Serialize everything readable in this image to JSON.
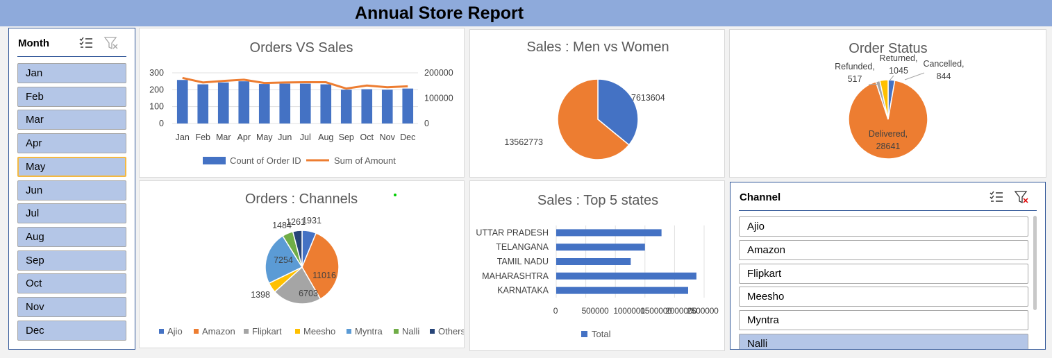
{
  "report_title": "Annual Store Report",
  "month_slicer": {
    "title": "Month",
    "items": [
      "Jan",
      "Feb",
      "Mar",
      "Apr",
      "May",
      "Jun",
      "Jul",
      "Aug",
      "Sep",
      "Oct",
      "Nov",
      "Dec"
    ],
    "selected": "May"
  },
  "channel_slicer": {
    "title": "Channel",
    "items": [
      "Ajio",
      "Amazon",
      "Flipkart",
      "Meesho",
      "Myntra",
      "Nalli"
    ]
  },
  "colors": {
    "blue": "#4472c4",
    "orange": "#ed7d31",
    "gray": "#a5a5a5",
    "yellow": "#ffc000",
    "lightblue": "#5b9bd5",
    "green": "#70ad47",
    "navy": "#264478"
  },
  "chart_data": [
    {
      "id": "orders_vs_sales",
      "type": "bar",
      "title": "Orders VS Sales",
      "categories": [
        "Jan",
        "Feb",
        "Mar",
        "Apr",
        "May",
        "Jun",
        "Jul",
        "Aug",
        "Sep",
        "Oct",
        "Nov",
        "Dec"
      ],
      "series": [
        {
          "name": "Count of Order ID",
          "type": "bar",
          "axis": "left",
          "values": [
            258,
            232,
            243,
            250,
            234,
            236,
            236,
            232,
            200,
            203,
            200,
            207
          ]
        },
        {
          "name": "Sum of Amount",
          "type": "line",
          "axis": "right",
          "values": [
            180000,
            162000,
            168000,
            173000,
            160000,
            162000,
            163000,
            163000,
            138000,
            150000,
            143000,
            147000
          ]
        }
      ],
      "ylim_left": [
        0,
        300
      ],
      "ylim_right": [
        0,
        200000
      ],
      "yticks_left": [
        "0",
        "100",
        "200",
        "300"
      ],
      "yticks_right": [
        "0",
        "100000",
        "200000"
      ],
      "legend_position": "bottom"
    },
    {
      "id": "men_vs_women",
      "type": "pie",
      "title": "Sales : Men vs Women",
      "slices": [
        {
          "value": 7613604,
          "label": "7613604",
          "color": "#4472c4"
        },
        {
          "value": 13562773,
          "label": "13562773",
          "color": "#ed7d31"
        }
      ]
    },
    {
      "id": "order_status",
      "type": "pie",
      "title": "Order Status",
      "slices": [
        {
          "name": "Cancelled",
          "value": 844,
          "label_line1": "Cancelled,",
          "label_line2": "844",
          "color": "#4472c4"
        },
        {
          "name": "Delivered",
          "value": 28641,
          "label_line1": "Delivered,",
          "label_line2": "28641",
          "color": "#ed7d31"
        },
        {
          "name": "Refunded",
          "value": 517,
          "label_line1": "Refunded,",
          "label_line2": "517",
          "color": "#a5a5a5"
        },
        {
          "name": "Returned",
          "value": 1045,
          "label_line1": "Returned,",
          "label_line2": "1045",
          "color": "#ffc000"
        }
      ]
    },
    {
      "id": "orders_channels",
      "type": "pie",
      "title": "Orders : Channels",
      "slices": [
        {
          "name": "Ajio",
          "value": 1931,
          "label": "1931",
          "color": "#4472c4"
        },
        {
          "name": "Amazon",
          "value": 11016,
          "label": "11016",
          "color": "#ed7d31"
        },
        {
          "name": "Flipkart",
          "value": 6703,
          "label": "6703",
          "color": "#a5a5a5"
        },
        {
          "name": "Meesho",
          "value": 1398,
          "label": "1398",
          "color": "#ffc000"
        },
        {
          "name": "Myntra",
          "value": 7254,
          "label": "7254",
          "color": "#5b9bd5"
        },
        {
          "name": "Nalli",
          "value": 1484,
          "label": "1484",
          "color": "#70ad47"
        },
        {
          "name": "Others",
          "value": 1261,
          "label": "1261",
          "color": "#264478"
        }
      ],
      "legend_position": "bottom"
    },
    {
      "id": "top5_states",
      "type": "bar",
      "orientation": "horizontal",
      "title": "Sales : Top 5 states",
      "categories": [
        "UTTAR PRADESH",
        "TELANGANA",
        "TAMIL NADU",
        "MAHARASHTRA",
        "KARNATAKA"
      ],
      "series": [
        {
          "name": "Total",
          "values": [
            1780000,
            1500000,
            1260000,
            2370000,
            2230000
          ]
        }
      ],
      "xlim": [
        0,
        2500000
      ],
      "xticks": [
        "0",
        "500000",
        "1000000",
        "1500000",
        "2000000",
        "2500000"
      ],
      "legend_position": "bottom"
    }
  ]
}
